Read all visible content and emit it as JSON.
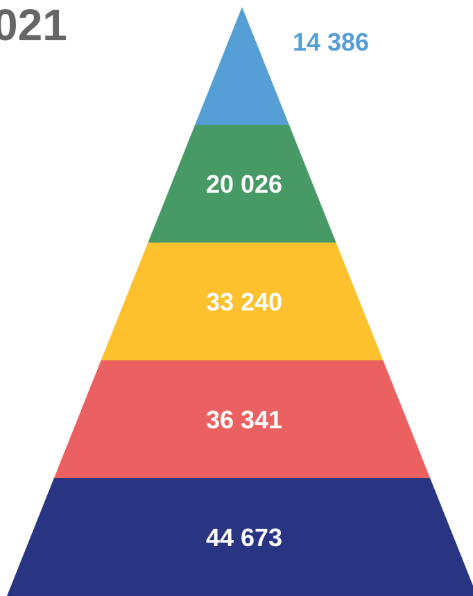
{
  "title": "021",
  "chart_data": {
    "type": "pyramid",
    "title": "021",
    "values": [
      14386,
      20026,
      33240,
      36341,
      44673
    ],
    "labels": [
      "14 386",
      "20 026",
      "33 240",
      "36 341",
      "44 673"
    ],
    "colors": [
      "#559fd6",
      "#479966",
      "#fdc12d",
      "#eb6060",
      "#293582"
    ],
    "label_colors": [
      "#559fd6",
      "#ffffff",
      "#ffffff",
      "#ffffff",
      "#ffffff"
    ],
    "order": "top-to-bottom"
  }
}
